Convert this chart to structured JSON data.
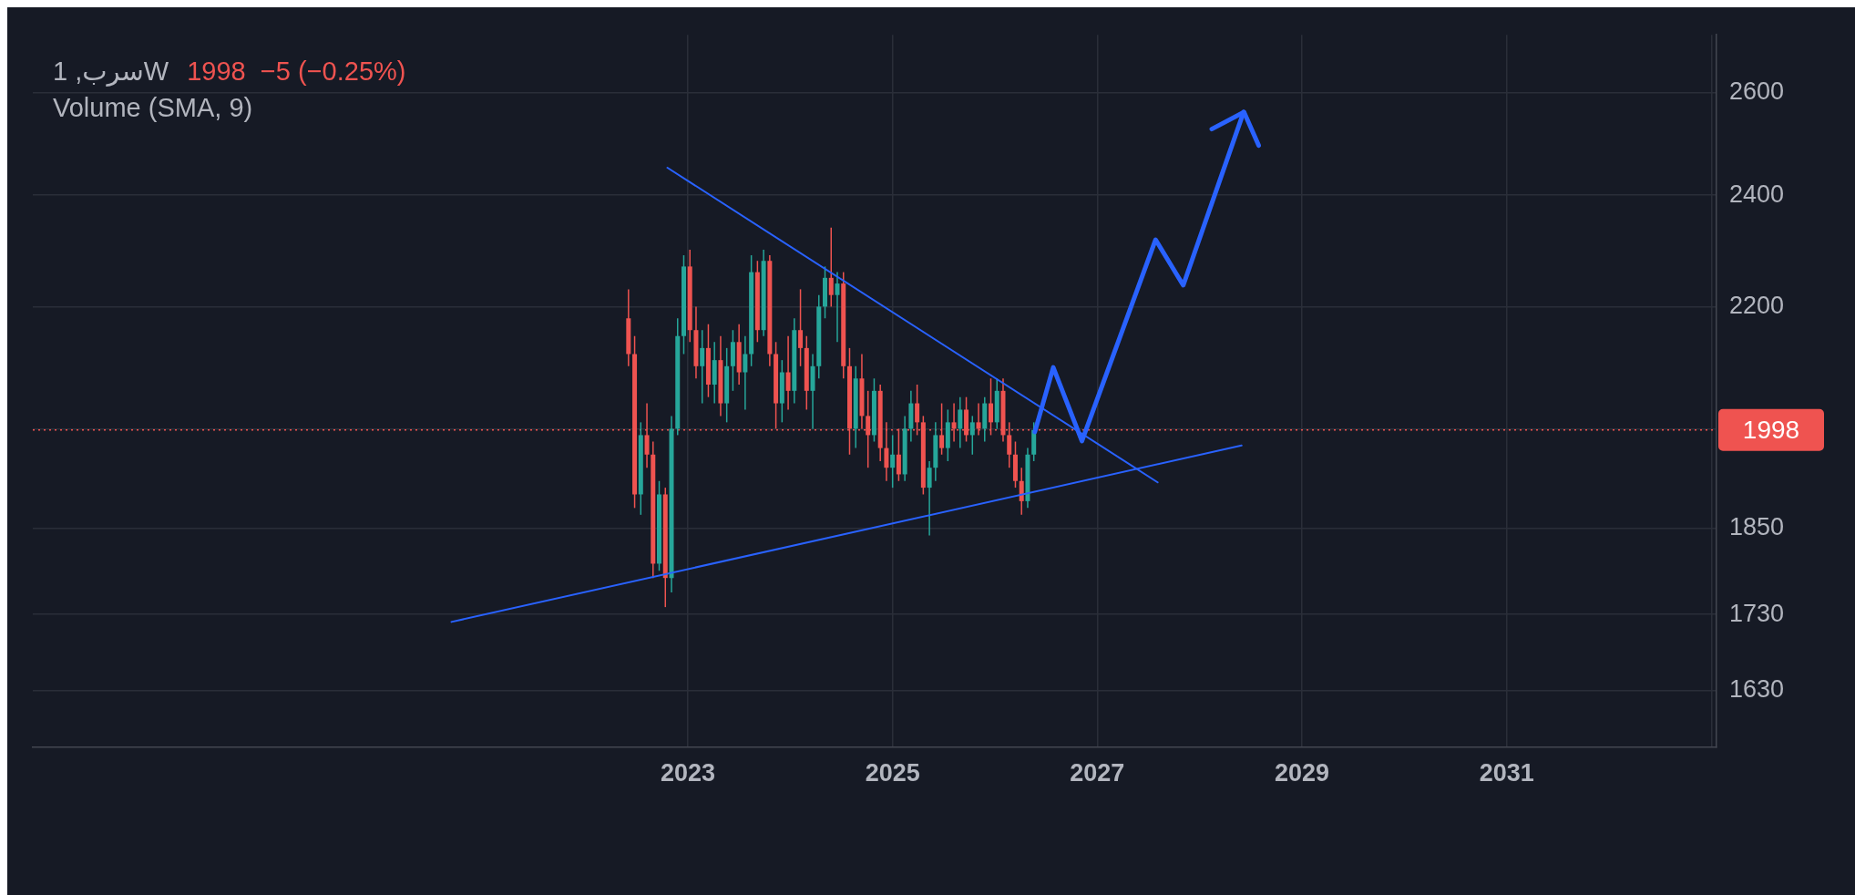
{
  "chart_data": {
    "type": "candlestick",
    "title": "سرب, 1W",
    "subtitle": "1998  −5 (−0.25%)",
    "annotations": [
      "Volume (SMA, 9)"
    ],
    "x": [
      2022.42,
      2022.48,
      2022.54,
      2022.6,
      2022.66,
      2022.72,
      2022.78,
      2022.84,
      2022.9,
      2022.96,
      2023.02,
      2023.08,
      2023.14,
      2023.2,
      2023.26,
      2023.32,
      2023.38,
      2023.44,
      2023.5,
      2023.56,
      2023.62,
      2023.68,
      2023.74,
      2023.8,
      2023.86,
      2023.92,
      2023.98,
      2024.04,
      2024.1,
      2024.16,
      2024.22,
      2024.28,
      2024.34,
      2024.4,
      2024.46,
      2024.52,
      2024.58,
      2024.64,
      2024.7,
      2024.76,
      2024.82,
      2024.88,
      2024.94,
      2025.0,
      2025.06,
      2025.12,
      2025.18,
      2025.24,
      2025.3,
      2025.36,
      2025.42,
      2025.48,
      2025.54,
      2025.6,
      2025.66,
      2025.72,
      2025.78,
      2025.84,
      2025.9,
      2025.96,
      2026.02,
      2026.08,
      2026.14,
      2026.2,
      2026.26,
      2026.32,
      2026.38
    ],
    "ohlc": [
      [
        2180,
        2230,
        2100,
        2120
      ],
      [
        2120,
        2150,
        1880,
        1900
      ],
      [
        1900,
        2010,
        1870,
        1990
      ],
      [
        1990,
        2040,
        1940,
        1960
      ],
      [
        1960,
        1980,
        1780,
        1800
      ],
      [
        1800,
        1920,
        1790,
        1900
      ],
      [
        1900,
        1910,
        1740,
        1780
      ],
      [
        1780,
        2020,
        1760,
        2000
      ],
      [
        2000,
        2180,
        1990,
        2150
      ],
      [
        2150,
        2290,
        2120,
        2270
      ],
      [
        2270,
        2300,
        2140,
        2160
      ],
      [
        2160,
        2200,
        2080,
        2100
      ],
      [
        2100,
        2160,
        2040,
        2130
      ],
      [
        2130,
        2170,
        2050,
        2070
      ],
      [
        2070,
        2140,
        2040,
        2110
      ],
      [
        2110,
        2150,
        2020,
        2040
      ],
      [
        2040,
        2130,
        2010,
        2100
      ],
      [
        2100,
        2160,
        2060,
        2140
      ],
      [
        2140,
        2170,
        2070,
        2090
      ],
      [
        2090,
        2150,
        2030,
        2120
      ],
      [
        2120,
        2290,
        2100,
        2260
      ],
      [
        2260,
        2280,
        2140,
        2160
      ],
      [
        2160,
        2300,
        2150,
        2280
      ],
      [
        2280,
        2290,
        2100,
        2120
      ],
      [
        2120,
        2140,
        2000,
        2040
      ],
      [
        2040,
        2110,
        2010,
        2090
      ],
      [
        2090,
        2150,
        2030,
        2060
      ],
      [
        2060,
        2180,
        2040,
        2160
      ],
      [
        2160,
        2230,
        2100,
        2130
      ],
      [
        2130,
        2150,
        2030,
        2060
      ],
      [
        2060,
        2120,
        2000,
        2100
      ],
      [
        2100,
        2220,
        2080,
        2200
      ],
      [
        2200,
        2270,
        2180,
        2250
      ],
      [
        2250,
        2340,
        2200,
        2220
      ],
      [
        2220,
        2260,
        2140,
        2240
      ],
      [
        2240,
        2260,
        2080,
        2100
      ],
      [
        2100,
        2130,
        1960,
        2000
      ],
      [
        2000,
        2100,
        1970,
        2080
      ],
      [
        2080,
        2120,
        2000,
        2020
      ],
      [
        2020,
        2060,
        1940,
        1990
      ],
      [
        1990,
        2080,
        1980,
        2060
      ],
      [
        2060,
        2070,
        1950,
        1970
      ],
      [
        1970,
        2010,
        1920,
        1940
      ],
      [
        1940,
        1990,
        1910,
        1960
      ],
      [
        1960,
        2000,
        1920,
        1930
      ],
      [
        1930,
        2020,
        1920,
        2000
      ],
      [
        2000,
        2060,
        1980,
        2040
      ],
      [
        2040,
        2070,
        1990,
        2010
      ],
      [
        2010,
        2020,
        1900,
        1910
      ],
      [
        1910,
        1950,
        1840,
        1940
      ],
      [
        1940,
        2010,
        1920,
        1990
      ],
      [
        1990,
        2040,
        1960,
        1970
      ],
      [
        1970,
        2030,
        1950,
        2010
      ],
      [
        2010,
        2040,
        1980,
        2000
      ],
      [
        2000,
        2050,
        1970,
        2030
      ],
      [
        2030,
        2050,
        1980,
        1990
      ],
      [
        1990,
        2020,
        1960,
        2010
      ],
      [
        2010,
        2040,
        1990,
        2000
      ],
      [
        2000,
        2050,
        1980,
        2040
      ],
      [
        2040,
        2080,
        1990,
        2010
      ],
      [
        2010,
        2080,
        2000,
        2060
      ],
      [
        2060,
        2080,
        1980,
        1990
      ],
      [
        1990,
        2010,
        1940,
        1960
      ],
      [
        1960,
        1980,
        1910,
        1920
      ],
      [
        1920,
        1940,
        1870,
        1890
      ],
      [
        1890,
        1970,
        1880,
        1960
      ],
      [
        1960,
        2010,
        1950,
        1998
      ]
    ],
    "series": [
      {
        "type": "line",
        "color": "#2962ff",
        "x": [
          2022.8,
          2027.59
        ],
        "values": [
          2452,
          1918
        ]
      },
      {
        "type": "line",
        "color": "#2962ff",
        "x": [
          2020.69,
          2028.41
        ],
        "values": [
          1720,
          1974
        ]
      },
      {
        "type": "line",
        "color": "#2962ff",
        "x": [
          2026.39,
          2026.57,
          2026.85,
          2027.57,
          2027.84,
          2028.43
        ],
        "values": [
          1995,
          2098,
          1981,
          2318,
          2237,
          2561
        ]
      }
    ],
    "xlim": [
      2016.6,
      2033.05
    ],
    "xticks": [
      2023,
      2025,
      2027,
      2029,
      2031,
      {
        "value": 2033,
        "label": null
      }
    ],
    "ylim": [
      1560,
      2720
    ],
    "yticks": [
      1630,
      1730,
      1850,
      {
        "value": 2000,
        "label": null
      },
      2200,
      2400,
      2600
    ],
    "log": "y",
    "grid": true,
    "legend": false,
    "ref_lines": [
      {
        "axis": "y",
        "value": 1998,
        "label": "1998",
        "color": "#ef5350",
        "line_style": "dotted"
      }
    ]
  }
}
